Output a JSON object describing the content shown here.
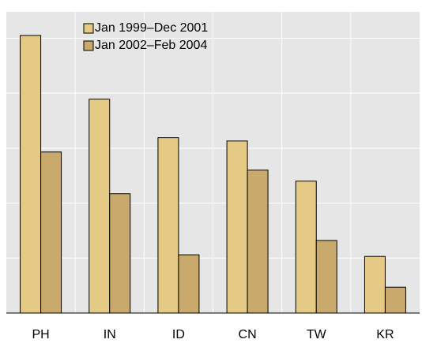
{
  "chart_data": {
    "type": "bar",
    "categories": [
      "PH",
      "IN",
      "ID",
      "CN",
      "TW",
      "KR"
    ],
    "series": [
      {
        "name": "Jan 1999–Dec 2001",
        "color": "#e4ca84",
        "values": [
          5.05,
          3.89,
          3.19,
          3.13,
          2.4,
          1.03
        ]
      },
      {
        "name": "Jan 2002–Feb 2004",
        "color": "#c9aa6c",
        "values": [
          2.93,
          2.17,
          1.06,
          2.6,
          1.32,
          0.47
        ]
      }
    ],
    "ylim": [
      0,
      5.48
    ],
    "yticks": [
      0,
      1,
      2,
      3,
      4,
      5
    ],
    "grid": true,
    "legend": "top-left"
  }
}
